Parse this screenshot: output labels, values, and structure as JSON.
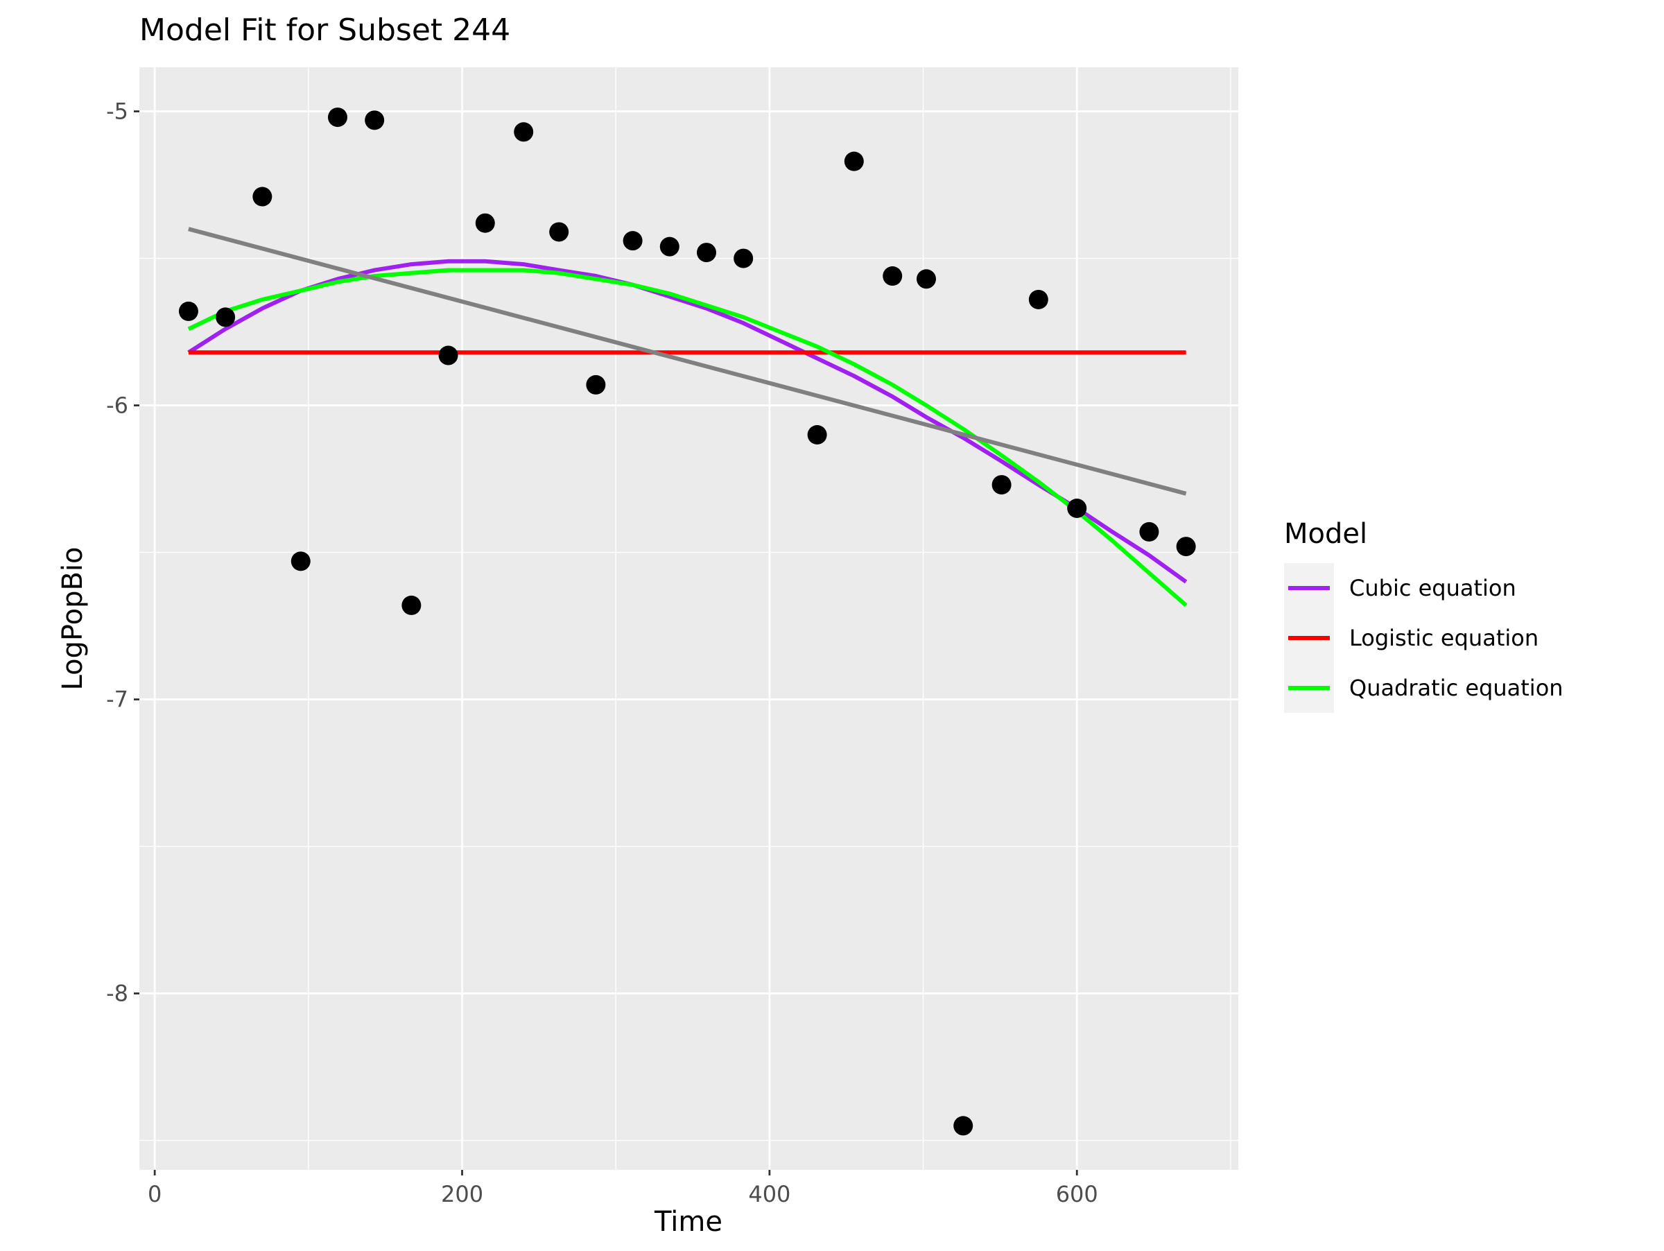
{
  "chart_data": {
    "type": "scatter",
    "title": "Model Fit for Subset 244",
    "xlabel": "Time",
    "ylabel": "LogPopBio",
    "xlim": [
      -10,
      705
    ],
    "ylim": [
      -8.6,
      -4.85
    ],
    "x_ticks": [
      0,
      200,
      400,
      600
    ],
    "x_tick_labels": [
      "0",
      "200",
      "400",
      "600"
    ],
    "y_ticks": [
      -5,
      -6,
      -7,
      -8
    ],
    "y_tick_labels": [
      "-5",
      "-6",
      "-7",
      "-8"
    ],
    "grid": true,
    "legend": {
      "title": "Model",
      "position": "right"
    },
    "points": [
      {
        "x": 22,
        "y": -5.68
      },
      {
        "x": 46,
        "y": -5.7
      },
      {
        "x": 70,
        "y": -5.29
      },
      {
        "x": 95,
        "y": -6.53
      },
      {
        "x": 119,
        "y": -5.02
      },
      {
        "x": 143,
        "y": -5.03
      },
      {
        "x": 167,
        "y": -6.68
      },
      {
        "x": 191,
        "y": -5.83
      },
      {
        "x": 215,
        "y": -5.38
      },
      {
        "x": 240,
        "y": -5.07
      },
      {
        "x": 263,
        "y": -5.41
      },
      {
        "x": 287,
        "y": -5.93
      },
      {
        "x": 311,
        "y": -5.44
      },
      {
        "x": 335,
        "y": -5.46
      },
      {
        "x": 359,
        "y": -5.48
      },
      {
        "x": 383,
        "y": -5.5
      },
      {
        "x": 431,
        "y": -6.1
      },
      {
        "x": 455,
        "y": -5.17
      },
      {
        "x": 480,
        "y": -5.56
      },
      {
        "x": 502,
        "y": -5.57
      },
      {
        "x": 526,
        "y": -8.45
      },
      {
        "x": 551,
        "y": -6.27
      },
      {
        "x": 575,
        "y": -5.64
      },
      {
        "x": 600,
        "y": -6.35
      },
      {
        "x": 647,
        "y": -6.43
      },
      {
        "x": 671,
        "y": -6.48
      }
    ],
    "series": [
      {
        "name": "Cubic equation",
        "color": "#a020f0",
        "x": [
          22,
          46,
          70,
          95,
          119,
          143,
          167,
          191,
          215,
          240,
          263,
          287,
          311,
          335,
          359,
          383,
          407,
          431,
          455,
          480,
          502,
          526,
          551,
          575,
          600,
          623,
          647,
          671
        ],
        "y": [
          -5.82,
          -5.74,
          -5.67,
          -5.61,
          -5.57,
          -5.54,
          -5.52,
          -5.51,
          -5.51,
          -5.52,
          -5.54,
          -5.56,
          -5.59,
          -5.63,
          -5.67,
          -5.72,
          -5.78,
          -5.84,
          -5.9,
          -5.97,
          -6.04,
          -6.11,
          -6.19,
          -6.27,
          -6.35,
          -6.43,
          -6.51,
          -6.6
        ]
      },
      {
        "name": "Logistic equation",
        "color": "#ff0000",
        "x": [
          22,
          671
        ],
        "y": [
          -5.82,
          -5.82
        ]
      },
      {
        "name": "Quadratic equation",
        "color": "#00ff00",
        "x": [
          22,
          46,
          70,
          95,
          119,
          143,
          167,
          191,
          215,
          240,
          263,
          287,
          311,
          335,
          359,
          383,
          407,
          431,
          455,
          480,
          502,
          526,
          551,
          575,
          600,
          623,
          647,
          671
        ],
        "y": [
          -5.74,
          -5.68,
          -5.64,
          -5.61,
          -5.58,
          -5.56,
          -5.55,
          -5.54,
          -5.54,
          -5.54,
          -5.55,
          -5.57,
          -5.59,
          -5.62,
          -5.66,
          -5.7,
          -5.75,
          -5.8,
          -5.86,
          -5.93,
          -6.0,
          -6.08,
          -6.17,
          -6.26,
          -6.36,
          -6.46,
          -6.57,
          -6.68
        ]
      },
      {
        "color": "#808080",
        "x": [
          22,
          671
        ],
        "y": [
          -5.4,
          -6.3
        ]
      }
    ],
    "colors": {
      "panel": "#ebebeb",
      "grid": "#ffffff",
      "point": "#000000"
    }
  }
}
